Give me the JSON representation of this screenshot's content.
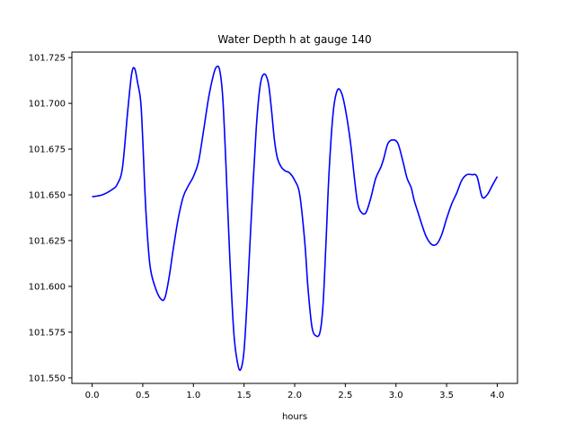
{
  "chart_data": {
    "type": "line",
    "title": "Water Depth h at gauge 140",
    "xlabel": "hours",
    "ylabel": "",
    "xlim": [
      -0.2,
      4.2
    ],
    "ylim": [
      101.547,
      101.728
    ],
    "xticks": [
      0.0,
      0.5,
      1.0,
      1.5,
      2.0,
      2.5,
      3.0,
      3.5,
      4.0
    ],
    "xtick_labels": [
      "0.0",
      "0.5",
      "1.0",
      "1.5",
      "2.0",
      "2.5",
      "3.0",
      "3.5",
      "4.0"
    ],
    "yticks": [
      101.55,
      101.575,
      101.6,
      101.625,
      101.65,
      101.675,
      101.7,
      101.725
    ],
    "ytick_labels": [
      "101.550",
      "101.575",
      "101.600",
      "101.625",
      "101.650",
      "101.675",
      "101.700",
      "101.725"
    ],
    "grid": false,
    "series": [
      {
        "name": "",
        "color": "#0000ff",
        "x": [
          0.0,
          0.1,
          0.2,
          0.25,
          0.3,
          0.35,
          0.39,
          0.42,
          0.45,
          0.48,
          0.5,
          0.53,
          0.57,
          0.62,
          0.68,
          0.72,
          0.76,
          0.8,
          0.85,
          0.9,
          0.95,
          1.0,
          1.05,
          1.1,
          1.15,
          1.2,
          1.23,
          1.26,
          1.29,
          1.32,
          1.36,
          1.4,
          1.44,
          1.47,
          1.5,
          1.53,
          1.57,
          1.62,
          1.66,
          1.7,
          1.74,
          1.77,
          1.8,
          1.83,
          1.87,
          1.91,
          1.95,
          2.0,
          2.05,
          2.1,
          2.13,
          2.17,
          2.21,
          2.25,
          2.28,
          2.31,
          2.34,
          2.38,
          2.42,
          2.46,
          2.5,
          2.55,
          2.59,
          2.62,
          2.65,
          2.7,
          2.75,
          2.8,
          2.85,
          2.88,
          2.92,
          2.97,
          3.02,
          3.07,
          3.11,
          3.15,
          3.18,
          3.22,
          3.26,
          3.3,
          3.35,
          3.4,
          3.45,
          3.5,
          3.55,
          3.6,
          3.65,
          3.7,
          3.75,
          3.8,
          3.85,
          3.9,
          3.95,
          4.0
        ],
        "y": [
          101.649,
          101.65,
          101.653,
          101.656,
          101.665,
          101.695,
          101.716,
          101.719,
          101.711,
          101.701,
          101.68,
          101.642,
          101.612,
          101.6,
          101.593,
          101.594,
          101.605,
          101.62,
          101.637,
          101.649,
          101.655,
          101.66,
          101.668,
          101.685,
          101.703,
          101.716,
          101.72,
          101.718,
          101.703,
          101.668,
          101.615,
          101.574,
          101.557,
          101.555,
          101.565,
          101.592,
          101.636,
          101.686,
          101.71,
          101.716,
          101.711,
          101.697,
          101.68,
          101.67,
          101.665,
          101.663,
          101.662,
          101.658,
          101.65,
          101.624,
          101.6,
          101.578,
          101.573,
          101.575,
          101.59,
          101.625,
          101.663,
          101.695,
          101.707,
          101.706,
          101.697,
          101.679,
          101.659,
          101.646,
          101.641,
          101.64,
          101.648,
          101.659,
          101.665,
          101.67,
          101.678,
          101.68,
          101.678,
          101.668,
          101.659,
          101.654,
          101.647,
          101.64,
          101.633,
          101.627,
          101.623,
          101.623,
          101.628,
          101.637,
          101.645,
          101.651,
          101.658,
          101.661,
          101.661,
          101.66,
          101.649,
          101.65,
          101.655,
          101.66
        ]
      }
    ]
  }
}
